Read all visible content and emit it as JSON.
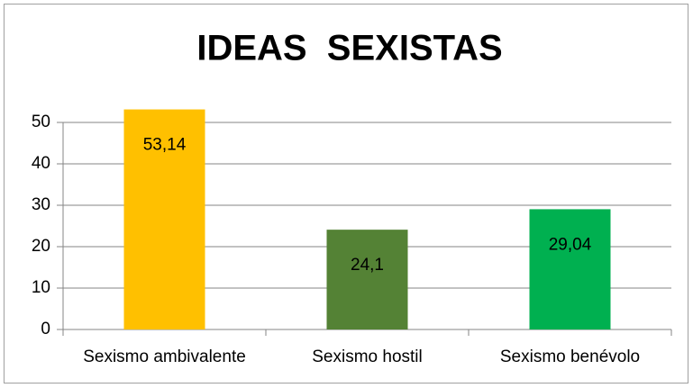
{
  "chart_data": {
    "type": "bar",
    "title": "IDEAS  SEXISTAS",
    "categories": [
      "Sexismo ambivalente",
      "Sexismo hostil",
      "Sexismo benévolo"
    ],
    "values": [
      53.14,
      24.1,
      29.04
    ],
    "value_labels": [
      "53,14",
      "24,1",
      "29,04"
    ],
    "colors": [
      "#ffc000",
      "#548235",
      "#00b050"
    ],
    "ylim": [
      0,
      55
    ],
    "yticks": [
      0,
      10,
      20,
      30,
      40,
      50
    ],
    "grid": true
  }
}
